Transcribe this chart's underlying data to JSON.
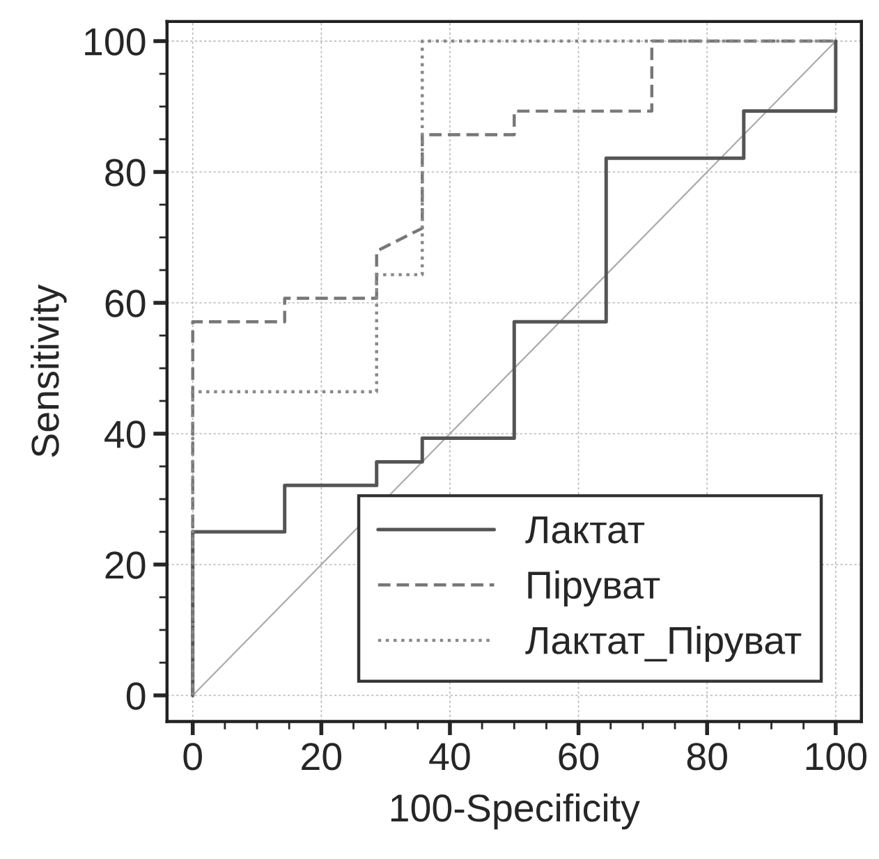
{
  "chart_data": {
    "type": "line",
    "xlabel": "100-Specificity",
    "ylabel": "Sensitivity",
    "series": [
      {
        "name": "Лактат",
        "color": "#555555",
        "line_style": "solid",
        "x": [
          0,
          0,
          14.3,
          14.3,
          28.6,
          28.6,
          35.7,
          35.7,
          50,
          50,
          64.3,
          64.3,
          85.7,
          85.7,
          100,
          100
        ],
        "values": [
          0,
          25,
          25,
          32.1,
          32.1,
          35.7,
          35.7,
          39.3,
          39.3,
          57.1,
          57.1,
          82.1,
          82.1,
          89.3,
          89.3,
          100
        ]
      },
      {
        "name": "Піруват",
        "color": "#777777",
        "line_style": "dashed",
        "x": [
          0,
          0,
          14.3,
          14.3,
          28.6,
          28.6,
          35.7,
          35.7,
          50,
          50,
          71.4,
          71.4,
          100
        ],
        "values": [
          0,
          57.1,
          57.1,
          60.7,
          60.7,
          67.9,
          71.4,
          85.7,
          85.7,
          89.3,
          89.3,
          100,
          100
        ]
      },
      {
        "name": "Лактат_Піруват",
        "color": "#888888",
        "line_style": "dotted",
        "x": [
          0,
          0,
          28.6,
          28.6,
          35.7,
          35.7,
          100
        ],
        "values": [
          0,
          46.4,
          46.4,
          64.3,
          64.3,
          100,
          100
        ]
      },
      {
        "color": "#aaaaaa",
        "line_style": "solid",
        "x": [
          0,
          100
        ],
        "values": [
          0,
          100
        ]
      }
    ],
    "xlim": [
      -4,
      104
    ],
    "ylim": [
      -4,
      103
    ],
    "xticks": [
      0,
      20,
      40,
      60,
      80,
      100
    ],
    "yticks": [
      0,
      20,
      40,
      60,
      80,
      100
    ],
    "grid": true,
    "legend": "bottom right"
  }
}
